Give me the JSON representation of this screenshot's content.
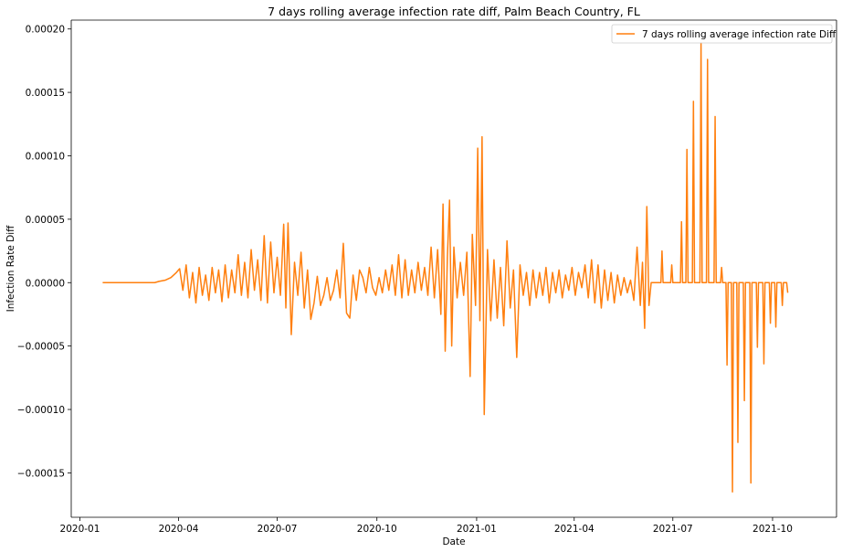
{
  "chart_data": {
    "type": "line",
    "title": "7 days rolling average infection rate diff, Palm Beach Country, FL",
    "xlabel": "Date",
    "ylabel": "Infection Rate Diff",
    "x_ticks": [
      "2020-01",
      "2020-04",
      "2020-07",
      "2020-10",
      "2021-01",
      "2021-04",
      "2021-07",
      "2021-10"
    ],
    "y_ticks": [
      "−0.00015",
      "−0.00010",
      "−0.00005",
      "0.00000",
      "0.00005",
      "0.00010",
      "0.00015",
      "0.00020"
    ],
    "xlim": [
      "2019-12-24",
      "2021-11-29"
    ],
    "ylim": [
      -0.000185,
      0.000207
    ],
    "grid": false,
    "legend_position": "top-right",
    "series": [
      {
        "name": "7 days rolling average infection rate Diff",
        "color": "#ff7f0e",
        "points": [
          [
            "2020-01-22",
            0
          ],
          [
            "2020-03-10",
            0
          ],
          [
            "2020-03-14",
            1e-06
          ],
          [
            "2020-03-20",
            2e-06
          ],
          [
            "2020-03-25",
            4e-06
          ],
          [
            "2020-03-30",
            8e-06
          ],
          [
            "2020-04-02",
            1.1e-05
          ],
          [
            "2020-04-05",
            -6e-06
          ],
          [
            "2020-04-08",
            1.4e-05
          ],
          [
            "2020-04-11",
            -1.2e-05
          ],
          [
            "2020-04-14",
            8e-06
          ],
          [
            "2020-04-17",
            -1.6e-05
          ],
          [
            "2020-04-20",
            1.2e-05
          ],
          [
            "2020-04-23",
            -1e-05
          ],
          [
            "2020-04-26",
            6e-06
          ],
          [
            "2020-04-29",
            -1.4e-05
          ],
          [
            "2020-05-02",
            1.2e-05
          ],
          [
            "2020-05-05",
            -8e-06
          ],
          [
            "2020-05-08",
            1e-05
          ],
          [
            "2020-05-11",
            -1.5e-05
          ],
          [
            "2020-05-14",
            1.4e-05
          ],
          [
            "2020-05-17",
            -1.2e-05
          ],
          [
            "2020-05-20",
            1e-05
          ],
          [
            "2020-05-23",
            -8e-06
          ],
          [
            "2020-05-26",
            2.2e-05
          ],
          [
            "2020-05-29",
            -1e-05
          ],
          [
            "2020-06-01",
            1.6e-05
          ],
          [
            "2020-06-04",
            -1.2e-05
          ],
          [
            "2020-06-07",
            2.6e-05
          ],
          [
            "2020-06-10",
            -6e-06
          ],
          [
            "2020-06-13",
            1.8e-05
          ],
          [
            "2020-06-16",
            -1.4e-05
          ],
          [
            "2020-06-19",
            3.7e-05
          ],
          [
            "2020-06-22",
            -1.6e-05
          ],
          [
            "2020-06-25",
            3.2e-05
          ],
          [
            "2020-06-28",
            -8e-06
          ],
          [
            "2020-07-01",
            2e-05
          ],
          [
            "2020-07-04",
            -1e-05
          ],
          [
            "2020-07-07",
            4.6e-05
          ],
          [
            "2020-07-09",
            -2e-05
          ],
          [
            "2020-07-11",
            4.7e-05
          ],
          [
            "2020-07-14",
            -4.1e-05
          ],
          [
            "2020-07-17",
            1.6e-05
          ],
          [
            "2020-07-20",
            -1e-05
          ],
          [
            "2020-07-23",
            2.4e-05
          ],
          [
            "2020-07-26",
            -2e-05
          ],
          [
            "2020-07-29",
            1e-05
          ],
          [
            "2020-08-01",
            -2.9e-05
          ],
          [
            "2020-08-04",
            -1.6e-05
          ],
          [
            "2020-08-07",
            5e-06
          ],
          [
            "2020-08-10",
            -1.8e-05
          ],
          [
            "2020-08-13",
            -1e-05
          ],
          [
            "2020-08-16",
            4e-06
          ],
          [
            "2020-08-19",
            -1.4e-05
          ],
          [
            "2020-08-22",
            -6e-06
          ],
          [
            "2020-08-25",
            1e-05
          ],
          [
            "2020-08-28",
            -1.2e-05
          ],
          [
            "2020-08-31",
            3.1e-05
          ],
          [
            "2020-09-03",
            -2.4e-05
          ],
          [
            "2020-09-06",
            -2.8e-05
          ],
          [
            "2020-09-09",
            6e-06
          ],
          [
            "2020-09-12",
            -1.4e-05
          ],
          [
            "2020-09-15",
            1e-05
          ],
          [
            "2020-09-18",
            4e-06
          ],
          [
            "2020-09-21",
            -8e-06
          ],
          [
            "2020-09-24",
            1.2e-05
          ],
          [
            "2020-09-27",
            -4e-06
          ],
          [
            "2020-09-30",
            -1e-05
          ],
          [
            "2020-10-03",
            4e-06
          ],
          [
            "2020-10-06",
            -8e-06
          ],
          [
            "2020-10-09",
            1e-05
          ],
          [
            "2020-10-12",
            -6e-06
          ],
          [
            "2020-10-15",
            1.4e-05
          ],
          [
            "2020-10-18",
            -1e-05
          ],
          [
            "2020-10-21",
            2.2e-05
          ],
          [
            "2020-10-24",
            -1.2e-05
          ],
          [
            "2020-10-27",
            1.8e-05
          ],
          [
            "2020-10-30",
            -1e-05
          ],
          [
            "2020-11-02",
            1e-05
          ],
          [
            "2020-11-05",
            -8e-06
          ],
          [
            "2020-11-08",
            1.6e-05
          ],
          [
            "2020-11-11",
            -6e-06
          ],
          [
            "2020-11-14",
            1.2e-05
          ],
          [
            "2020-11-17",
            -1e-05
          ],
          [
            "2020-11-20",
            2.8e-05
          ],
          [
            "2020-11-23",
            -1.2e-05
          ],
          [
            "2020-11-26",
            2.6e-05
          ],
          [
            "2020-11-29",
            -2.5e-05
          ],
          [
            "2020-12-01",
            6.2e-05
          ],
          [
            "2020-12-03",
            -5.4e-05
          ],
          [
            "2020-12-05",
            2e-05
          ],
          [
            "2020-12-07",
            6.5e-05
          ],
          [
            "2020-12-09",
            -5e-05
          ],
          [
            "2020-12-11",
            2.8e-05
          ],
          [
            "2020-12-14",
            -1.2e-05
          ],
          [
            "2020-12-17",
            1.6e-05
          ],
          [
            "2020-12-20",
            -1e-05
          ],
          [
            "2020-12-23",
            2.4e-05
          ],
          [
            "2020-12-26",
            -7.4e-05
          ],
          [
            "2020-12-28",
            3.8e-05
          ],
          [
            "2020-12-31",
            -1.8e-05
          ],
          [
            "2021-01-02",
            0.000106
          ],
          [
            "2021-01-04",
            -3e-05
          ],
          [
            "2021-01-06",
            0.000115
          ],
          [
            "2021-01-08",
            -0.000104
          ],
          [
            "2021-01-11",
            2.6e-05
          ],
          [
            "2021-01-14",
            -3e-05
          ],
          [
            "2021-01-17",
            1.8e-05
          ],
          [
            "2021-01-20",
            -2.8e-05
          ],
          [
            "2021-01-23",
            1.2e-05
          ],
          [
            "2021-01-26",
            -3.4e-05
          ],
          [
            "2021-01-29",
            3.3e-05
          ],
          [
            "2021-02-01",
            -2e-05
          ],
          [
            "2021-02-04",
            1e-05
          ],
          [
            "2021-02-07",
            -5.9e-05
          ],
          [
            "2021-02-10",
            1.4e-05
          ],
          [
            "2021-02-13",
            -1e-05
          ],
          [
            "2021-02-16",
            8e-06
          ],
          [
            "2021-02-19",
            -1.8e-05
          ],
          [
            "2021-02-22",
            1e-05
          ],
          [
            "2021-02-25",
            -1.2e-05
          ],
          [
            "2021-02-28",
            8e-06
          ],
          [
            "2021-03-03",
            -1e-05
          ],
          [
            "2021-03-06",
            1.2e-05
          ],
          [
            "2021-03-09",
            -1.6e-05
          ],
          [
            "2021-03-12",
            8e-06
          ],
          [
            "2021-03-15",
            -8e-06
          ],
          [
            "2021-03-18",
            1e-05
          ],
          [
            "2021-03-21",
            -1.2e-05
          ],
          [
            "2021-03-24",
            6e-06
          ],
          [
            "2021-03-27",
            -6e-06
          ],
          [
            "2021-03-30",
            1.2e-05
          ],
          [
            "2021-04-02",
            -1e-05
          ],
          [
            "2021-04-05",
            8e-06
          ],
          [
            "2021-04-08",
            -4e-06
          ],
          [
            "2021-04-11",
            1.4e-05
          ],
          [
            "2021-04-14",
            -1.2e-05
          ],
          [
            "2021-04-17",
            1.8e-05
          ],
          [
            "2021-04-20",
            -1.6e-05
          ],
          [
            "2021-04-23",
            1.4e-05
          ],
          [
            "2021-04-26",
            -2e-05
          ],
          [
            "2021-04-29",
            1e-05
          ],
          [
            "2021-05-02",
            -1.4e-05
          ],
          [
            "2021-05-05",
            8e-06
          ],
          [
            "2021-05-08",
            -1.6e-05
          ],
          [
            "2021-05-11",
            6e-06
          ],
          [
            "2021-05-14",
            -1e-05
          ],
          [
            "2021-05-17",
            4e-06
          ],
          [
            "2021-05-20",
            -8e-06
          ],
          [
            "2021-05-23",
            2e-06
          ],
          [
            "2021-05-26",
            -1.4e-05
          ],
          [
            "2021-05-29",
            2.8e-05
          ],
          [
            "2021-06-01",
            -1.8e-05
          ],
          [
            "2021-06-03",
            1.6e-05
          ],
          [
            "2021-06-05",
            -3.6e-05
          ],
          [
            "2021-06-07",
            6e-05
          ],
          [
            "2021-06-09",
            -1.8e-05
          ],
          [
            "2021-06-11",
            0
          ],
          [
            "2021-06-20",
            0
          ],
          [
            "2021-06-21",
            2.5e-05
          ],
          [
            "2021-06-22",
            0
          ],
          [
            "2021-06-29",
            0
          ],
          [
            "2021-06-30",
            1.4e-05
          ],
          [
            "2021-07-01",
            0
          ],
          [
            "2021-07-08",
            0
          ],
          [
            "2021-07-09",
            4.8e-05
          ],
          [
            "2021-07-10",
            0
          ],
          [
            "2021-07-13",
            0
          ],
          [
            "2021-07-14",
            0.000105
          ],
          [
            "2021-07-15",
            0
          ],
          [
            "2021-07-19",
            0
          ],
          [
            "2021-07-20",
            0.000143
          ],
          [
            "2021-07-21",
            0
          ],
          [
            "2021-07-26",
            0
          ],
          [
            "2021-07-27",
            0.000189
          ],
          [
            "2021-07-28",
            0
          ],
          [
            "2021-08-01",
            0
          ],
          [
            "2021-08-02",
            0.000176
          ],
          [
            "2021-08-03",
            0
          ],
          [
            "2021-08-08",
            0
          ],
          [
            "2021-08-09",
            0.000131
          ],
          [
            "2021-08-10",
            0
          ],
          [
            "2021-08-14",
            0
          ],
          [
            "2021-08-15",
            1.2e-05
          ],
          [
            "2021-08-16",
            0
          ],
          [
            "2021-08-19",
            0
          ],
          [
            "2021-08-20",
            -6.5e-05
          ],
          [
            "2021-08-21",
            0
          ],
          [
            "2021-08-24",
            0
          ],
          [
            "2021-08-25",
            -0.000165
          ],
          [
            "2021-08-26",
            0
          ],
          [
            "2021-08-29",
            0
          ],
          [
            "2021-08-30",
            -0.000126
          ],
          [
            "2021-08-31",
            0
          ],
          [
            "2021-09-04",
            0
          ],
          [
            "2021-09-05",
            -9.3e-05
          ],
          [
            "2021-09-06",
            0
          ],
          [
            "2021-09-10",
            0
          ],
          [
            "2021-09-11",
            -0.000158
          ],
          [
            "2021-09-12",
            0
          ],
          [
            "2021-09-16",
            0
          ],
          [
            "2021-09-17",
            -5.1e-05
          ],
          [
            "2021-09-18",
            0
          ],
          [
            "2021-09-22",
            0
          ],
          [
            "2021-09-23",
            -6.4e-05
          ],
          [
            "2021-09-24",
            0
          ],
          [
            "2021-09-28",
            0
          ],
          [
            "2021-09-29",
            -3.2e-05
          ],
          [
            "2021-09-30",
            0
          ],
          [
            "2021-10-03",
            0
          ],
          [
            "2021-10-04",
            -3.5e-05
          ],
          [
            "2021-10-05",
            0
          ],
          [
            "2021-10-09",
            0
          ],
          [
            "2021-10-10",
            -1.8e-05
          ],
          [
            "2021-10-11",
            0
          ],
          [
            "2021-10-14",
            0
          ],
          [
            "2021-10-15",
            -8e-06
          ]
        ]
      }
    ]
  }
}
